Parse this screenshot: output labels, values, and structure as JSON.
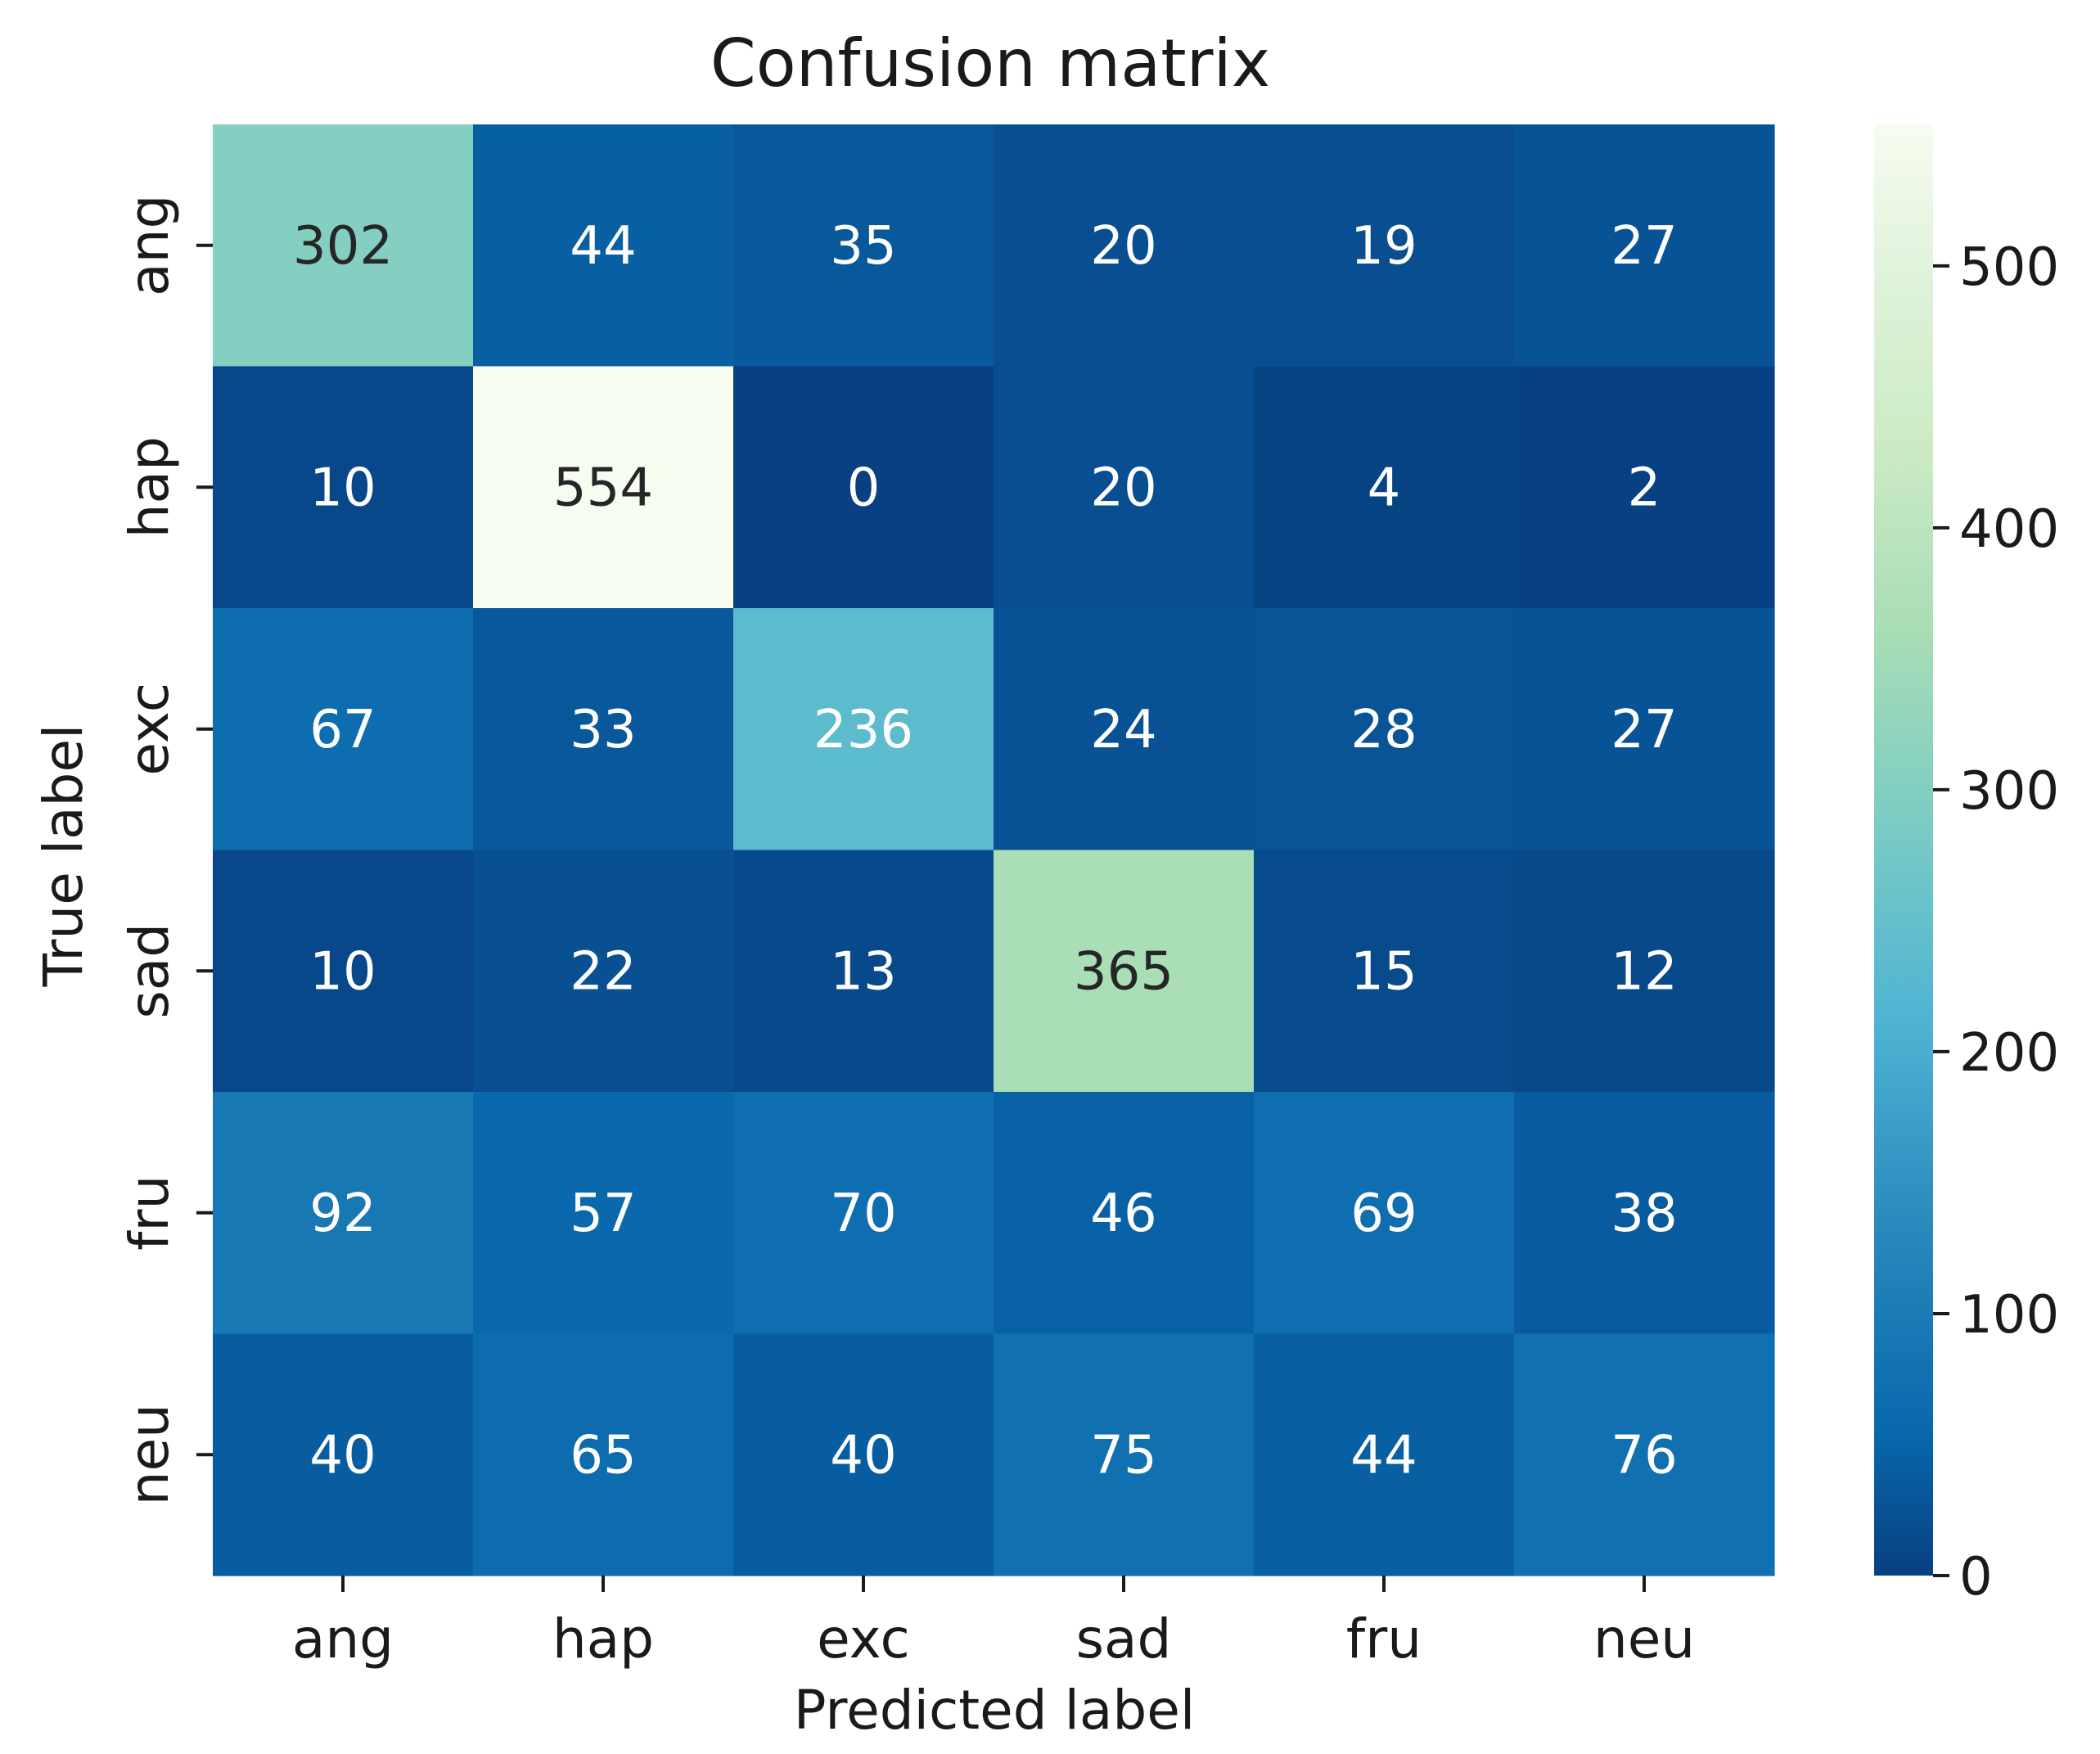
{
  "chart_data": {
    "type": "heatmap",
    "title": "Confusion matrix",
    "xlabel": "Predicted label",
    "ylabel": "True label",
    "x_categories": [
      "ang",
      "hap",
      "exc",
      "sad",
      "fru",
      "neu"
    ],
    "y_categories": [
      "ang",
      "hap",
      "exc",
      "sad",
      "fru",
      "neu"
    ],
    "matrix": [
      [
        302,
        44,
        35,
        20,
        19,
        27
      ],
      [
        10,
        554,
        0,
        20,
        4,
        2
      ],
      [
        67,
        33,
        236,
        24,
        28,
        27
      ],
      [
        10,
        22,
        13,
        365,
        15,
        12
      ],
      [
        92,
        57,
        70,
        46,
        69,
        38
      ],
      [
        40,
        65,
        40,
        75,
        44,
        76
      ]
    ],
    "colormap": "GnBu_r",
    "vmin": 0,
    "vmax": 554,
    "colorbar_ticks": [
      0,
      100,
      200,
      300,
      400,
      500
    ],
    "colors": {
      "low": "#084081",
      "high": "#f7fcf0",
      "dark_text": "#262626",
      "light_text": "#ffffff"
    }
  }
}
